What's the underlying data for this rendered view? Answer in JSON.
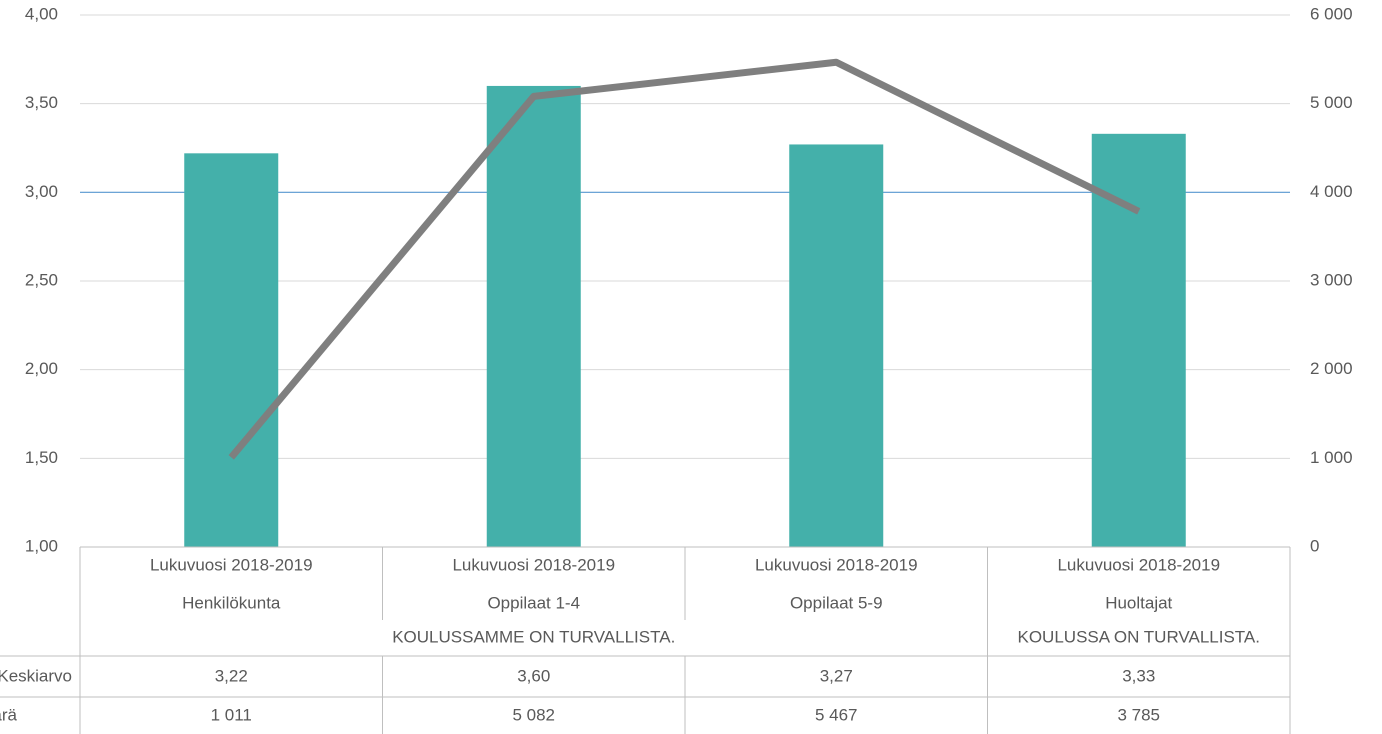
{
  "chart_data": {
    "type": "bar_line",
    "categories": [
      [
        "Lukuvuosi 2018-2019",
        "Henkilökunta"
      ],
      [
        "Lukuvuosi 2018-2019",
        "Oppilaat 1-4"
      ],
      [
        "Lukuvuosi 2018-2019",
        "Oppilaat 5-9"
      ],
      [
        "Lukuvuosi 2018-2019",
        "Huoltajat"
      ]
    ],
    "groups": [
      "KOULUSSAMME ON TURVALLISTA.",
      null,
      null,
      "KOULUSSA ON TURVALLISTA."
    ],
    "series": [
      {
        "name": "Keskiarvo",
        "type": "bar",
        "color": "#44b0aa",
        "values": [
          3.22,
          3.6,
          3.27,
          3.33
        ],
        "value_labels": [
          "3,22",
          "3,60",
          "3,27",
          "3,33"
        ]
      },
      {
        "name": "Määrä",
        "type": "line",
        "axis": "y2",
        "color": "#7f7f7f",
        "values": [
          1011,
          5082,
          5467,
          3785
        ],
        "value_labels": [
          "1 011",
          "5 082",
          "5 467",
          "3 785"
        ]
      }
    ],
    "ylim": [
      1,
      4
    ],
    "yticks": [
      {
        "value": 1,
        "label": "1,00"
      },
      {
        "value": 1.5,
        "label": "1,50"
      },
      {
        "value": 2,
        "label": "2,00"
      },
      {
        "value": 2.5,
        "label": "2,50"
      },
      {
        "value": 3,
        "label": "3,00"
      },
      {
        "value": 3.5,
        "label": "3,50"
      },
      {
        "value": 4,
        "label": "4,00"
      }
    ],
    "y2lim": [
      0,
      6000
    ],
    "y2ticks": [
      0,
      {
        "value": 1000,
        "label": "1 000"
      },
      {
        "value": 2000,
        "label": "2 000"
      },
      {
        "value": 3000,
        "label": "3 000"
      },
      {
        "value": 4000,
        "label": "4 000"
      },
      {
        "value": 5000,
        "label": "5 000"
      },
      {
        "value": 6000,
        "label": "6 000"
      }
    ],
    "grid": true,
    "reference_line": 3,
    "reference_color": "#5b9bd5",
    "data_table": true
  }
}
